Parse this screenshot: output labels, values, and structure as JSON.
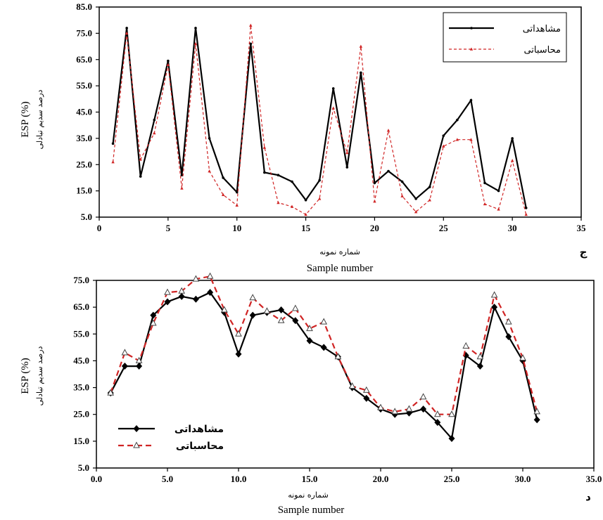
{
  "chart_data": [
    {
      "type": "line",
      "panel_label": "ج",
      "xlabel": "Sample number",
      "xlabel_sub": "شماره نمونه",
      "ylabel": "ESP (%)",
      "ylabel_sub": "درصد سدیم تبادلی",
      "xlim": [
        0,
        35
      ],
      "ylim": [
        5,
        85
      ],
      "xticks": [
        0,
        5,
        10,
        15,
        20,
        25,
        30,
        35
      ],
      "xtick_labels": [
        "0",
        "5",
        "10",
        "15",
        "20",
        "25",
        "30",
        "35"
      ],
      "yticks": [
        5,
        15,
        25,
        35,
        45,
        55,
        65,
        75,
        85
      ],
      "ytick_labels": [
        "5.0",
        "15.0",
        "25.0",
        "35.0",
        "45.0",
        "55.0",
        "65.0",
        "75.0",
        "85.0"
      ],
      "grid": false,
      "legend_position": "top-right",
      "x": [
        1,
        2,
        3,
        4,
        5,
        6,
        7,
        8,
        9,
        10,
        11,
        12,
        13,
        14,
        15,
        16,
        17,
        18,
        19,
        20,
        21,
        22,
        23,
        24,
        25,
        26,
        27,
        28,
        29,
        30,
        31
      ],
      "series": [
        {
          "name": "مشاهداتی",
          "color": "#000000",
          "style": "solid",
          "values": [
            33,
            77,
            20.5,
            42,
            64.5,
            21,
            77,
            35,
            20,
            14.5,
            71,
            22,
            21,
            18.5,
            11.5,
            19,
            54,
            24,
            60,
            18,
            22.5,
            18.5,
            12,
            16.5,
            36,
            42,
            49.5,
            18,
            15,
            35,
            8.5
          ]
        },
        {
          "name": "محاسباتی",
          "color": "#d02424",
          "style": "dashed",
          "values": [
            26,
            75,
            27,
            37,
            63,
            16,
            71,
            22.5,
            13.5,
            9.5,
            78,
            31.5,
            10.5,
            9,
            6,
            12,
            46.5,
            29.5,
            70,
            11,
            38,
            13,
            7,
            11.5,
            32,
            34.5,
            34.5,
            10,
            8,
            26.5,
            6
          ]
        }
      ]
    },
    {
      "type": "line",
      "panel_label": "د",
      "xlabel": "Sample number",
      "xlabel_sub": "شماره نمونه",
      "ylabel": "ESP (%)",
      "ylabel_sub": "درصد سدیم تبادلی",
      "xlim": [
        0,
        35
      ],
      "ylim": [
        5,
        75
      ],
      "xticks": [
        0,
        5,
        10,
        15,
        20,
        25,
        30,
        35
      ],
      "xtick_labels": [
        "0.0",
        "5.0",
        "10.0",
        "15.0",
        "20.0",
        "25.0",
        "30.0",
        "35.0"
      ],
      "yticks": [
        5,
        15,
        25,
        35,
        45,
        55,
        65,
        75
      ],
      "ytick_labels": [
        "5.0",
        "15.0",
        "25.0",
        "35.0",
        "45.0",
        "55.0",
        "65.0",
        "75.0"
      ],
      "grid": false,
      "legend_position": "bottom-left",
      "x": [
        1,
        2,
        3,
        4,
        5,
        6,
        7,
        8,
        9,
        10,
        11,
        12,
        13,
        14,
        15,
        16,
        17,
        18,
        19,
        20,
        21,
        22,
        23,
        24,
        25,
        26,
        27,
        28,
        29,
        30,
        31
      ],
      "series": [
        {
          "name": "مشاهداتی",
          "color": "#000000",
          "style": "solid",
          "marker": "diamond",
          "values": [
            33,
            43,
            43,
            62,
            67,
            69,
            68,
            70.5,
            63,
            47.5,
            62,
            63,
            64,
            60,
            52.5,
            50,
            46.5,
            35,
            31,
            27,
            25,
            25.5,
            27,
            22,
            16,
            47,
            43,
            65,
            54,
            45,
            23
          ]
        },
        {
          "name": "محاسباتی",
          "color": "#d02424",
          "style": "dashed",
          "marker": "triangle",
          "values": [
            33,
            48,
            45,
            59,
            70.5,
            71,
            75.5,
            76.5,
            64,
            55,
            68.5,
            63.5,
            60,
            64.5,
            57,
            59.5,
            46.5,
            35.5,
            34,
            27.5,
            26,
            27,
            31.5,
            25,
            25,
            50.5,
            46.5,
            69.5,
            59.5,
            46,
            26
          ]
        }
      ]
    }
  ]
}
